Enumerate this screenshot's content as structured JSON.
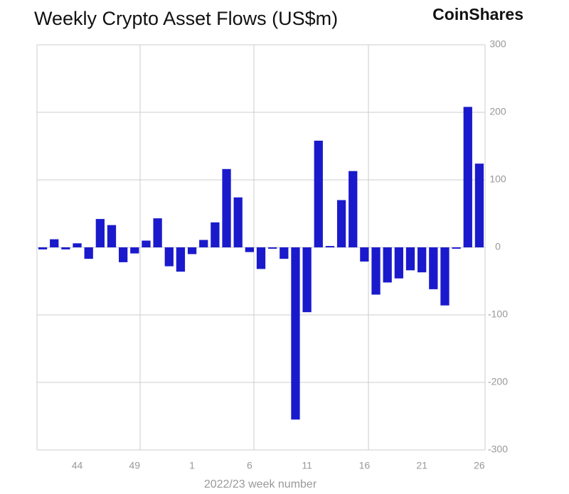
{
  "chart_data": {
    "type": "bar",
    "title": "Weekly Crypto Asset Flows (US$m)",
    "brand": "CoinShares",
    "x_label": "2022/23 week number",
    "color": "#1a1acc",
    "categories": [
      null,
      null,
      null,
      "44",
      null,
      null,
      null,
      null,
      "49",
      null,
      null,
      null,
      null,
      "1",
      null,
      null,
      null,
      null,
      "6",
      null,
      null,
      null,
      null,
      "11",
      null,
      null,
      null,
      null,
      "16",
      null,
      null,
      null,
      null,
      "21",
      null,
      null,
      null,
      null,
      "26"
    ],
    "values": [
      -3,
      12,
      -3,
      6,
      -17,
      42,
      33,
      -22,
      -9,
      10,
      43,
      -28,
      -36,
      -10,
      11,
      37,
      116,
      74,
      -7,
      -32,
      -2,
      -17,
      -255,
      -96,
      158,
      2,
      70,
      113,
      -21,
      -70,
      -52,
      -46,
      -34,
      -37,
      -62,
      -86,
      -2,
      208,
      124
    ],
    "ylim": [
      -300,
      300
    ],
    "yticks": [
      -300,
      -200,
      -100,
      0,
      100,
      200,
      300
    ],
    "grid": true
  }
}
